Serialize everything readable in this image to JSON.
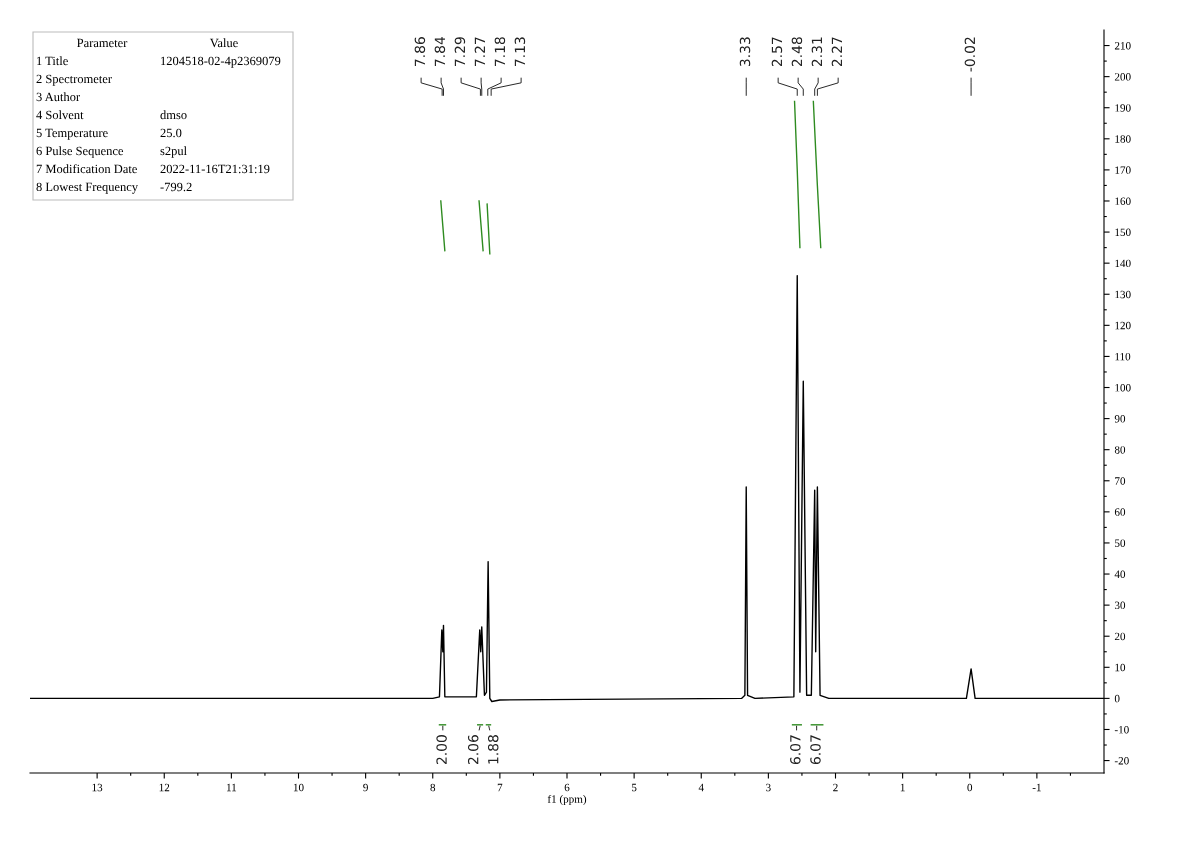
{
  "chart_data": {
    "type": "line",
    "xlabel": "f1 (ppm)",
    "xlim": [
      14,
      -2
    ],
    "ylim": [
      -24,
      215
    ],
    "xticks": [
      13,
      {
        "value": 12.5,
        "label": null
      },
      12,
      {
        "value": 11.5,
        "label": null
      },
      11,
      {
        "value": 10.5,
        "label": null
      },
      10,
      {
        "value": 9.5,
        "label": null
      },
      9,
      {
        "value": 8.5,
        "label": null
      },
      8,
      {
        "value": 7.5,
        "label": null
      },
      7,
      {
        "value": 6.5,
        "label": null
      },
      6,
      {
        "value": 5.5,
        "label": null
      },
      5,
      {
        "value": 4.5,
        "label": null
      },
      4,
      {
        "value": 3.5,
        "label": null
      },
      3,
      {
        "value": 2.5,
        "label": null
      },
      2,
      {
        "value": 1.5,
        "label": null
      },
      1,
      {
        "value": 0.5,
        "label": null
      },
      0,
      {
        "value": -0.5,
        "label": null
      },
      -1,
      {
        "value": -1.5,
        "label": null
      }
    ],
    "yticks": [
      -20,
      {
        "value": -15,
        "label": null
      },
      -10,
      {
        "value": -5,
        "label": null
      },
      0,
      {
        "value": 5,
        "label": null
      },
      10,
      {
        "value": 15,
        "label": null
      },
      20,
      {
        "value": 25,
        "label": null
      },
      30,
      {
        "value": 35,
        "label": null
      },
      40,
      {
        "value": 45,
        "label": null
      },
      50,
      {
        "value": 55,
        "label": null
      },
      60,
      {
        "value": 65,
        "label": null
      },
      70,
      {
        "value": 75,
        "label": null
      },
      80,
      {
        "value": 85,
        "label": null
      },
      90,
      {
        "value": 95,
        "label": null
      },
      100,
      {
        "value": 105,
        "label": null
      },
      110,
      {
        "value": 115,
        "label": null
      },
      120,
      {
        "value": 125,
        "label": null
      },
      130,
      {
        "value": 135,
        "label": null
      },
      140,
      {
        "value": 145,
        "label": null
      },
      150,
      {
        "value": 155,
        "label": null
      },
      160,
      {
        "value": 165,
        "label": null
      },
      170,
      {
        "value": 175,
        "label": null
      },
      180,
      {
        "value": 185,
        "label": null
      },
      190,
      {
        "value": 195,
        "label": null
      },
      200,
      {
        "value": 205,
        "label": null
      },
      210
    ],
    "grid": false,
    "legend": false,
    "series": [
      {
        "color": "#000000",
        "x": [
          14.0,
          8.0,
          7.9,
          7.865,
          7.85,
          7.84,
          7.82,
          7.35,
          7.3,
          7.285,
          7.27,
          7.23,
          7.2,
          7.175,
          7.15,
          7.12,
          7.0,
          3.4,
          3.35,
          3.33,
          3.31,
          3.2,
          2.62,
          2.57,
          2.53,
          2.48,
          2.43,
          2.36,
          2.31,
          2.295,
          2.27,
          2.23,
          2.1,
          0.05,
          -0.02,
          -0.08,
          -2.0
        ],
        "values": [
          0,
          0,
          0.5,
          22,
          15,
          23.5,
          0.5,
          0.5,
          22,
          15,
          23,
          1,
          2,
          44,
          0,
          -1,
          -0.5,
          0,
          1,
          68,
          1,
          0,
          0.5,
          136,
          2,
          102,
          1,
          1,
          67,
          15,
          68,
          1,
          0,
          0,
          9.5,
          0,
          0
        ]
      },
      {
        "color": "#2e8b20",
        "x": [
          7.88,
          7.85,
          7.82
        ],
        "values": [
          160,
          152,
          144
        ]
      },
      {
        "color": "#2e8b20",
        "x": [
          7.31,
          7.28,
          7.25
        ],
        "values": [
          160,
          152,
          144
        ]
      },
      {
        "color": "#2e8b20",
        "x": [
          7.19,
          7.17,
          7.15
        ],
        "values": [
          159,
          151,
          143
        ]
      },
      {
        "color": "#2e8b20",
        "x": [
          2.61,
          2.57,
          2.53
        ],
        "values": [
          192,
          170,
          145
        ]
      },
      {
        "color": "#2e8b20",
        "x": [
          2.33,
          2.27,
          2.22
        ],
        "values": [
          192,
          165,
          145
        ]
      },
      {
        "color": "#2e8b20",
        "x": [
          7.9,
          7.81
        ],
        "values": [
          -8.5,
          -8.5
        ]
      },
      {
        "color": "#2e8b20",
        "x": [
          7.33,
          7.26
        ],
        "values": [
          -8.5,
          -8.5
        ]
      },
      {
        "color": "#2e8b20",
        "x": [
          7.2,
          7.14
        ],
        "values": [
          -8.5,
          -8.5
        ]
      },
      {
        "color": "#2e8b20",
        "x": [
          2.64,
          2.51
        ],
        "values": [
          -8.5,
          -8.5
        ]
      },
      {
        "color": "#2e8b20",
        "x": [
          2.36,
          2.19
        ],
        "values": [
          -8.5,
          -8.5
        ]
      }
    ],
    "annotations": [
      "Parameter\tValue",
      "1 Title\t1204518-02-4p2369079",
      "2 Spectrometer",
      "3 Author",
      "4 Solvent\tdmso",
      "5 Temperature\t25.0",
      "6 Pulse Sequence\ts2pul",
      "7 Modification Date\t2022-11-16T21:31:19",
      "8 Lowest Frequency\t-799.2",
      {
        "text": "7.86",
        "x": 7.86
      },
      {
        "text": "7.84",
        "x": 7.84
      },
      {
        "text": "7.29",
        "x": 7.29
      },
      {
        "text": "7.27",
        "x": 7.27
      },
      {
        "text": "7.18",
        "x": 7.18
      },
      {
        "text": "7.13",
        "x": 7.13
      },
      {
        "text": "3.33",
        "x": 3.33
      },
      {
        "text": "2.57",
        "x": 2.57
      },
      {
        "text": "2.48",
        "x": 2.48
      },
      {
        "text": "2.31",
        "x": 2.31
      },
      {
        "text": "2.27",
        "x": 2.27
      },
      {
        "text": "-0.02",
        "x": -0.02
      },
      {
        "text": "2.00",
        "x": 7.85,
        "y": -8.5
      },
      {
        "text": "2.06",
        "x": 7.29,
        "y": -8.5
      },
      {
        "text": "1.88",
        "x": 7.17,
        "y": -8.5
      },
      {
        "text": "6.07",
        "x": 2.58,
        "y": -8.5
      },
      {
        "text": "6.07",
        "x": 2.28,
        "y": -8.5
      }
    ]
  }
}
